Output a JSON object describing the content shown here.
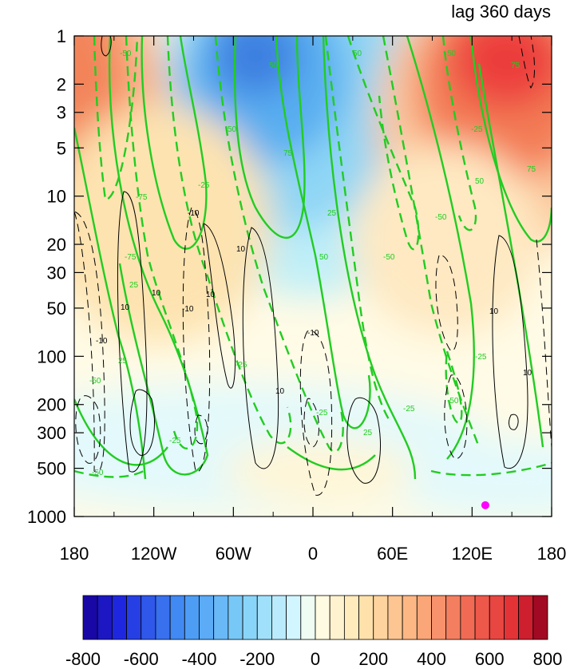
{
  "chart_data": {
    "type": "heatmap",
    "title": "lag 360 days",
    "x_ticks": [
      "180",
      "120W",
      "60W",
      "0",
      "60E",
      "120E",
      "180"
    ],
    "y_ticks": [
      "1",
      "2",
      "3",
      "5",
      "10",
      "20",
      "30",
      "50",
      "100",
      "200",
      "300",
      "500",
      "1000"
    ],
    "y_scale": "log",
    "y_direction": "reversed",
    "colorbar": {
      "min": -800,
      "max": 800,
      "step": 50,
      "tick_labels": [
        "-800",
        "-600",
        "-400",
        "-200",
        "0",
        "200",
        "400",
        "600",
        "800"
      ]
    },
    "green_contours": {
      "color": "#22cc22",
      "levels_shown": [
        "-75",
        "-50",
        "-25",
        "25",
        "50",
        "75"
      ]
    },
    "black_contours": {
      "color": "#000000",
      "levels_shown": [
        "-10",
        "10"
      ]
    },
    "marker": {
      "color": "#ff00ff",
      "lon": 130,
      "pressure": 850
    }
  }
}
